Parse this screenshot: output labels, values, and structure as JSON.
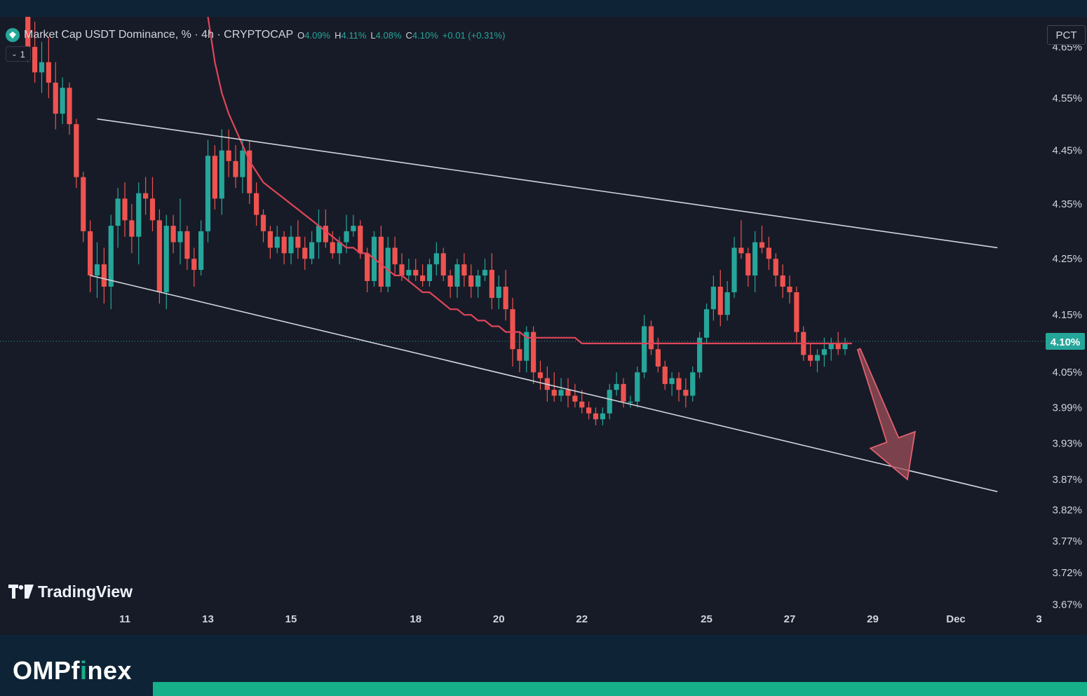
{
  "header": {
    "symbol_title": "Market Cap USDT Dominance, % · 4h · CRYPTOCAP",
    "ohlc": [
      {
        "key": "O",
        "value": "4.09%"
      },
      {
        "key": "H",
        "value": "4.11%"
      },
      {
        "key": "L",
        "value": "4.08%"
      },
      {
        "key": "C",
        "value": "4.10%"
      },
      {
        "key": "",
        "value": "+0.01 (+0.31%)"
      }
    ],
    "collapse_label": "1",
    "scale_mode_label": "PCT"
  },
  "branding": {
    "chart_logo_text": "TradingView",
    "footer_brand_main": "OMPf",
    "footer_brand_accent": "i",
    "footer_brand_tail": "nex"
  },
  "colors": {
    "up": "#26a69a",
    "down": "#ef5350",
    "ma_line": "#e0465a",
    "trend_lines": "#d1d4dc",
    "arrow_fill": "#9e4f5a",
    "arrow_stroke": "#e06070",
    "price_tag": "#26a69a",
    "footer_accent": "#16b08a"
  },
  "chart_data": {
    "type": "candlestick",
    "x_axis": {
      "tick_labels": [
        "11",
        "13",
        "15",
        "18",
        "20",
        "22",
        "25",
        "27",
        "29",
        "Dec",
        "3"
      ],
      "tick_index": [
        14,
        26,
        38,
        56,
        68,
        80,
        98,
        110,
        122,
        134,
        146
      ]
    },
    "y_axis": {
      "unit": "%",
      "tick_labels": [
        "4.65%",
        "4.55%",
        "4.45%",
        "4.35%",
        "4.25%",
        "4.15%",
        "4.05%",
        "3.99%",
        "3.93%",
        "3.87%",
        "3.82%",
        "3.77%",
        "3.72%",
        "3.67%"
      ],
      "tick_values": [
        4.65,
        4.55,
        4.45,
        4.35,
        4.25,
        4.15,
        4.05,
        3.99,
        3.93,
        3.87,
        3.82,
        3.77,
        3.72,
        3.67
      ],
      "scale": "logarithmic"
    },
    "last_price": {
      "value": 4.1,
      "label": "4.10%"
    },
    "candles_start_index": 0,
    "candles": [
      [
        4.75,
        4.78,
        4.62,
        4.65
      ],
      [
        4.65,
        4.7,
        4.58,
        4.6
      ],
      [
        4.6,
        4.66,
        4.56,
        4.62
      ],
      [
        4.62,
        4.67,
        4.55,
        4.58
      ],
      [
        4.58,
        4.62,
        4.49,
        4.52
      ],
      [
        4.52,
        4.59,
        4.5,
        4.57
      ],
      [
        4.57,
        4.58,
        4.48,
        4.5
      ],
      [
        4.5,
        4.51,
        4.38,
        4.4
      ],
      [
        4.4,
        4.41,
        4.28,
        4.3
      ],
      [
        4.3,
        4.32,
        4.19,
        4.22
      ],
      [
        4.22,
        4.28,
        4.18,
        4.24
      ],
      [
        4.24,
        4.27,
        4.17,
        4.2
      ],
      [
        4.2,
        4.33,
        4.16,
        4.31
      ],
      [
        4.31,
        4.38,
        4.27,
        4.36
      ],
      [
        4.36,
        4.39,
        4.29,
        4.32
      ],
      [
        4.32,
        4.35,
        4.26,
        4.29
      ],
      [
        4.29,
        4.39,
        4.24,
        4.37
      ],
      [
        4.37,
        4.4,
        4.33,
        4.36
      ],
      [
        4.36,
        4.4,
        4.3,
        4.32
      ],
      [
        4.32,
        4.34,
        4.17,
        4.19
      ],
      [
        4.19,
        4.33,
        4.16,
        4.31
      ],
      [
        4.31,
        4.33,
        4.26,
        4.28
      ],
      [
        4.28,
        4.36,
        4.24,
        4.3
      ],
      [
        4.3,
        4.31,
        4.23,
        4.25
      ],
      [
        4.25,
        4.27,
        4.2,
        4.23
      ],
      [
        4.23,
        4.32,
        4.22,
        4.3
      ],
      [
        4.3,
        4.47,
        4.28,
        4.44
      ],
      [
        4.44,
        4.46,
        4.34,
        4.36
      ],
      [
        4.36,
        4.49,
        4.33,
        4.45
      ],
      [
        4.45,
        4.49,
        4.4,
        4.43
      ],
      [
        4.43,
        4.46,
        4.38,
        4.4
      ],
      [
        4.4,
        4.47,
        4.37,
        4.45
      ],
      [
        4.45,
        4.47,
        4.35,
        4.37
      ],
      [
        4.37,
        4.39,
        4.31,
        4.33
      ],
      [
        4.33,
        4.34,
        4.28,
        4.3
      ],
      [
        4.3,
        4.31,
        4.25,
        4.27
      ],
      [
        4.27,
        4.31,
        4.26,
        4.29
      ],
      [
        4.29,
        4.3,
        4.24,
        4.26
      ],
      [
        4.26,
        4.31,
        4.24,
        4.29
      ],
      [
        4.29,
        4.32,
        4.25,
        4.27
      ],
      [
        4.27,
        4.29,
        4.23,
        4.25
      ],
      [
        4.25,
        4.3,
        4.24,
        4.28
      ],
      [
        4.28,
        4.34,
        4.25,
        4.31
      ],
      [
        4.31,
        4.34,
        4.27,
        4.28
      ],
      [
        4.28,
        4.3,
        4.25,
        4.26
      ],
      [
        4.26,
        4.29,
        4.24,
        4.28
      ],
      [
        4.28,
        4.33,
        4.26,
        4.3
      ],
      [
        4.3,
        4.33,
        4.29,
        4.31
      ],
      [
        4.31,
        4.32,
        4.25,
        4.26
      ],
      [
        4.26,
        4.27,
        4.19,
        4.21
      ],
      [
        4.21,
        4.3,
        4.2,
        4.29
      ],
      [
        4.29,
        4.31,
        4.19,
        4.2
      ],
      [
        4.2,
        4.29,
        4.19,
        4.27
      ],
      [
        4.27,
        4.29,
        4.22,
        4.24
      ],
      [
        4.24,
        4.26,
        4.21,
        4.22
      ],
      [
        4.22,
        4.25,
        4.21,
        4.23
      ],
      [
        4.23,
        4.25,
        4.21,
        4.22
      ],
      [
        4.22,
        4.24,
        4.2,
        4.21
      ],
      [
        4.21,
        4.25,
        4.2,
        4.24
      ],
      [
        4.24,
        4.28,
        4.22,
        4.26
      ],
      [
        4.26,
        4.27,
        4.21,
        4.22
      ],
      [
        4.22,
        4.23,
        4.18,
        4.2
      ],
      [
        4.2,
        4.25,
        4.18,
        4.24
      ],
      [
        4.24,
        4.26,
        4.2,
        4.22
      ],
      [
        4.22,
        4.24,
        4.18,
        4.2
      ],
      [
        4.2,
        4.23,
        4.18,
        4.22
      ],
      [
        4.22,
        4.25,
        4.21,
        4.23
      ],
      [
        4.23,
        4.26,
        4.16,
        4.18
      ],
      [
        4.18,
        4.22,
        4.16,
        4.2
      ],
      [
        4.2,
        4.23,
        4.14,
        4.16
      ],
      [
        4.16,
        4.18,
        4.06,
        4.09
      ],
      [
        4.09,
        4.12,
        4.05,
        4.07
      ],
      [
        4.07,
        4.13,
        4.05,
        4.12
      ],
      [
        4.12,
        4.13,
        4.03,
        4.05
      ],
      [
        4.05,
        4.07,
        4.02,
        4.04
      ],
      [
        4.04,
        4.06,
        4.0,
        4.02
      ],
      [
        4.02,
        4.05,
        4.0,
        4.01
      ],
      [
        4.01,
        4.04,
        4.0,
        4.02
      ],
      [
        4.02,
        4.04,
        3.99,
        4.01
      ],
      [
        4.01,
        4.03,
        3.99,
        4.0
      ],
      [
        4.0,
        4.02,
        3.98,
        3.99
      ],
      [
        3.99,
        4.0,
        3.97,
        3.98
      ],
      [
        3.98,
        3.99,
        3.96,
        3.97
      ],
      [
        3.97,
        3.99,
        3.96,
        3.98
      ],
      [
        3.98,
        4.03,
        3.97,
        4.02
      ],
      [
        4.02,
        4.05,
        4.01,
        4.03
      ],
      [
        4.03,
        4.04,
        3.99,
        4.0
      ],
      [
        4.0,
        4.01,
        3.99,
        4.0
      ],
      [
        4.0,
        4.06,
        3.99,
        4.05
      ],
      [
        4.05,
        4.15,
        4.04,
        4.13
      ],
      [
        4.13,
        4.14,
        4.08,
        4.09
      ],
      [
        4.09,
        4.11,
        4.05,
        4.06
      ],
      [
        4.06,
        4.07,
        4.02,
        4.03
      ],
      [
        4.03,
        4.05,
        4.01,
        4.04
      ],
      [
        4.04,
        4.05,
        4.0,
        4.02
      ],
      [
        4.02,
        4.04,
        3.99,
        4.01
      ],
      [
        4.01,
        4.06,
        4.0,
        4.05
      ],
      [
        4.05,
        4.12,
        4.04,
        4.11
      ],
      [
        4.11,
        4.17,
        4.1,
        4.16
      ],
      [
        4.16,
        4.22,
        4.14,
        4.2
      ],
      [
        4.2,
        4.23,
        4.13,
        4.15
      ],
      [
        4.15,
        4.21,
        4.14,
        4.19
      ],
      [
        4.19,
        4.29,
        4.18,
        4.27
      ],
      [
        4.27,
        4.32,
        4.25,
        4.26
      ],
      [
        4.26,
        4.27,
        4.2,
        4.22
      ],
      [
        4.22,
        4.3,
        4.19,
        4.28
      ],
      [
        4.28,
        4.31,
        4.26,
        4.27
      ],
      [
        4.27,
        4.29,
        4.23,
        4.25
      ],
      [
        4.25,
        4.26,
        4.2,
        4.22
      ],
      [
        4.22,
        4.24,
        4.18,
        4.2
      ],
      [
        4.2,
        4.22,
        4.17,
        4.19
      ],
      [
        4.19,
        4.2,
        4.1,
        4.12
      ],
      [
        4.12,
        4.13,
        4.07,
        4.08
      ],
      [
        4.08,
        4.1,
        4.06,
        4.07
      ],
      [
        4.07,
        4.09,
        4.05,
        4.08
      ],
      [
        4.08,
        4.11,
        4.06,
        4.09
      ],
      [
        4.09,
        4.11,
        4.07,
        4.1
      ],
      [
        4.1,
        4.12,
        4.08,
        4.09
      ],
      [
        4.09,
        4.11,
        4.08,
        4.1
      ]
    ],
    "overlays": [
      {
        "kind": "moving-average",
        "values_from_index": 24,
        "values": [
          4.95,
          4.82,
          4.71,
          4.62,
          4.56,
          4.52,
          4.49,
          4.46,
          4.43,
          4.41,
          4.39,
          4.38,
          4.37,
          4.36,
          4.35,
          4.34,
          4.33,
          4.32,
          4.31,
          4.3,
          4.29,
          4.28,
          4.27,
          4.27,
          4.26,
          4.26,
          4.25,
          4.24,
          4.23,
          4.22,
          4.22,
          4.21,
          4.2,
          4.19,
          4.19,
          4.18,
          4.17,
          4.16,
          4.16,
          4.15,
          4.15,
          4.14,
          4.14,
          4.13,
          4.13,
          4.12,
          4.12,
          4.12,
          4.11,
          4.11,
          4.11,
          4.11,
          4.11,
          4.11,
          4.11,
          4.11,
          4.1,
          4.1,
          4.1,
          4.1,
          4.1,
          4.1,
          4.1,
          4.1,
          4.1,
          4.1,
          4.1,
          4.1,
          4.1,
          4.1,
          4.1,
          4.1,
          4.1,
          4.1,
          4.1,
          4.1,
          4.1,
          4.1,
          4.1,
          4.1,
          4.1,
          4.1,
          4.1,
          4.1,
          4.1,
          4.1,
          4.1,
          4.1,
          4.1,
          4.1,
          4.1,
          4.1,
          4.1,
          4.1,
          4.1,
          4.1
        ]
      },
      {
        "kind": "upper-channel-line",
        "from": {
          "index": 10,
          "value": 4.51
        },
        "to": {
          "index": 140,
          "value": 4.27
        }
      },
      {
        "kind": "lower-channel-line",
        "from": {
          "index": 9,
          "value": 4.22
        },
        "to": {
          "index": 140,
          "value": 3.85
        }
      },
      {
        "kind": "projection-arrow",
        "from": {
          "index": 120,
          "value": 4.09
        },
        "to": {
          "index": 127,
          "value": 3.87
        }
      }
    ]
  }
}
